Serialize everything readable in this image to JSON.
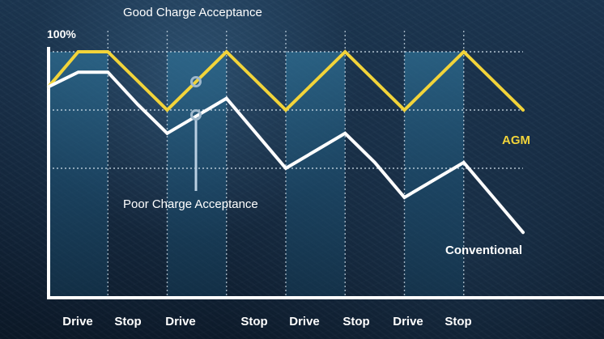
{
  "chart_data": {
    "type": "line",
    "x": [
      0,
      1,
      2,
      3,
      4,
      5,
      6,
      7,
      8,
      9,
      10,
      11,
      12,
      13,
      14,
      15,
      16
    ],
    "periods": [
      "Drive",
      "Stop",
      "Drive",
      "Stop",
      "Drive",
      "Stop",
      "Drive",
      "Stop"
    ],
    "series": [
      {
        "name": "AGM",
        "color": "#f2d43a",
        "values": [
          88,
          100,
          100,
          90,
          80,
          90,
          100,
          90,
          80,
          90,
          100,
          90,
          80,
          90,
          100,
          90,
          80
        ]
      },
      {
        "name": "Conventional",
        "color": "#ffffff",
        "values": [
          88,
          93,
          93,
          82,
          72,
          78,
          84,
          72,
          60,
          66,
          72,
          62,
          50,
          56,
          62,
          50,
          38
        ]
      }
    ],
    "ylim": [
      0,
      100
    ],
    "y_tick_labels": [
      "100%"
    ],
    "annotations": {
      "good": "Good Charge Acceptance",
      "poor": "Poor Charge Acceptance"
    },
    "grid": true,
    "shaded_periods": [
      0,
      2,
      4,
      6
    ]
  }
}
